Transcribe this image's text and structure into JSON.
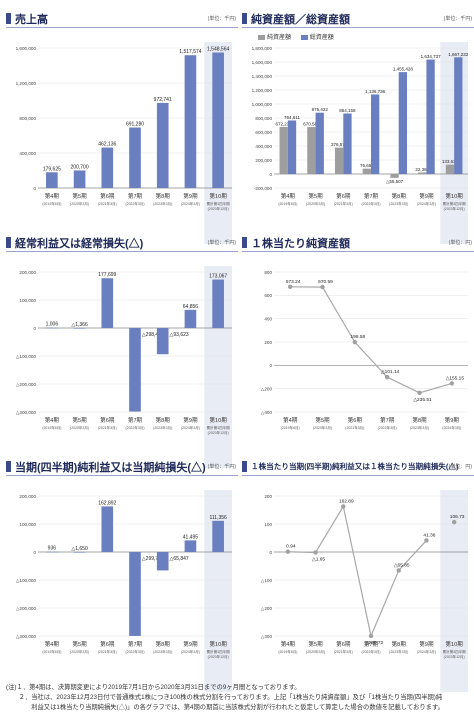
{
  "panels": [
    {
      "title": "売上高",
      "unit": "(単位：千円)",
      "chart_data": {
        "type": "bar",
        "title": "売上高",
        "categories": [
          "第4期",
          "第5期",
          "第6期",
          "第7期",
          "第8期",
          "第9期",
          "第10期"
        ],
        "subcategories": [
          "(2019年6月)",
          "(2020年3月)",
          "(2021年3月)",
          "(2022年3月)",
          "(2023年3月)",
          "(2024年3月)",
          "累計第3四半期(2023年12月)"
        ],
        "series": [
          {
            "values": [
              179625,
              200700,
              462136,
              691280,
              972741,
              1517574,
              1548564
            ]
          }
        ],
        "value_labels": [
          "179,625",
          "200,700",
          "462,136",
          "691,280",
          "972,741",
          "1,517,574",
          "1,548,564"
        ],
        "yticks": [
          0,
          400000,
          800000,
          1200000,
          1600000
        ],
        "ytick_labels": [
          "0",
          "400,000",
          "800,000",
          "1,200,000",
          "1,600,000"
        ],
        "ylim": [
          0,
          1600000
        ],
        "highlight_last": true,
        "bar_color": "#6a7fc0"
      }
    },
    {
      "title": "純資産額／総資産額",
      "unit": "(単位：千円)",
      "legend": [
        {
          "name": "純資産額",
          "color": "#9e9e9e"
        },
        {
          "name": "総資産額",
          "color": "#6a7fc0"
        }
      ],
      "chart_data": {
        "type": "bar",
        "title": "純資産額／総資産額",
        "categories": [
          "第4期",
          "第5期",
          "第6期",
          "第7期",
          "第8期",
          "第9期",
          "第10期"
        ],
        "subcategories": [
          "(2019年6月)",
          "(2020年3月)",
          "(2021年3月)",
          "(2022年3月)",
          "(2023年3月)",
          "(2024年3月)",
          "累計第3四半期(2023年12月)"
        ],
        "series": [
          {
            "name": "純資産額",
            "values": [
              672231,
              670588,
              376577,
              76659,
              -55507,
              22361,
              133633
            ],
            "labels": [
              "672,231",
              "670,588",
              "376,577",
              "76,659",
              "△55,507",
              "22,361",
              "133,633"
            ]
          },
          {
            "name": "総資産額",
            "values": [
              764611,
              875422,
              864158,
              1136736,
              1455428,
              1634737,
              1667232
            ],
            "labels": [
              "764,611",
              "875,422",
              "864,158",
              "1,136,736",
              "1,455,428",
              "1,634,737",
              "1,667,232"
            ]
          }
        ],
        "yticks": [
          -200000,
          0,
          200000,
          400000,
          600000,
          800000,
          1000000,
          1200000,
          1400000,
          1600000,
          1800000
        ],
        "ytick_labels": [
          "-200,000",
          "0",
          "200,000",
          "400,000",
          "600,000",
          "800,000",
          "1,000,000",
          "1,200,000",
          "1,400,000",
          "1,600,000",
          "1,800,000"
        ],
        "ylim": [
          -200000,
          1800000
        ],
        "highlight_last": true
      }
    },
    {
      "title": "経常利益又は経常損失(△)",
      "unit": "(単位：千円)",
      "chart_data": {
        "type": "bar",
        "title": "経常利益又は経常損失(△)",
        "categories": [
          "第4期",
          "第5期",
          "第6期",
          "第7期",
          "第8期",
          "第9期",
          "第10期"
        ],
        "subcategories": [
          "(2019年6月)",
          "(2020年3月)",
          "(2021年3月)",
          "(2022年3月)",
          "(2023年3月)",
          "(2024年3月)",
          "累計第3四半期(2023年12月)"
        ],
        "series": [
          {
            "values": [
              1006,
              -1366,
              177699,
              -298432,
              -93623,
              64856,
              173067
            ]
          }
        ],
        "value_labels": [
          "1,006",
          "△1,366",
          "177,699",
          "△298,432",
          "△93,623",
          "64,856",
          "173,067"
        ],
        "yticks": [
          -300000,
          -200000,
          -100000,
          0,
          100000,
          200000
        ],
        "ytick_labels": [
          "△300,000",
          "△200,000",
          "△100,000",
          "0",
          "100,000",
          "200,000"
        ],
        "ylim": [
          -300000,
          200000
        ],
        "highlight_last": true,
        "bar_color": "#6a7fc0"
      }
    },
    {
      "title": "１株当たり純資産額",
      "unit": "(単位：円)",
      "chart_data": {
        "type": "line",
        "title": "１株当たり純資産額",
        "categories": [
          "第4期",
          "第5期",
          "第6期",
          "第7期",
          "第8期",
          "第9期"
        ],
        "subcategories": [
          "(2019年6月)",
          "(2020年3月)",
          "(2021年3月)",
          "(2022年3月)",
          "(2023年3月)",
          "(2024年3月)"
        ],
        "series": [
          {
            "values": [
              673.24,
              670.59,
              198.58,
              -101.14,
              -235.51,
              -155.15
            ]
          }
        ],
        "value_labels": [
          "673.24",
          "670.59",
          "198.58",
          "△101.14",
          "△235.51",
          "△155.15"
        ],
        "yticks": [
          -400,
          -200,
          0,
          200,
          400,
          600,
          800
        ],
        "ytick_labels": [
          "△400",
          "△200",
          "0",
          "200",
          "400",
          "600",
          "800"
        ],
        "ylim": [
          -400,
          800
        ],
        "line_color": "#a8a8a8"
      }
    },
    {
      "title": "当期(四半期)純利益又は当期純損失(△)",
      "unit": "(単位：千円)",
      "chart_data": {
        "type": "bar",
        "title": "当期(四半期)純利益又は当期純損失(△)",
        "categories": [
          "第4期",
          "第5期",
          "第6期",
          "第7期",
          "第8期",
          "第9期",
          "第10期"
        ],
        "subcategories": [
          "(2019年6月)",
          "(2020年3月)",
          "(2021年3月)",
          "(2022年3月)",
          "(2023年3月)",
          "(2024年3月)",
          "累計第3四半期(2023年12月)"
        ],
        "series": [
          {
            "values": [
              936,
              -1650,
              162892,
              -299718,
              -65847,
              41495,
              111356
            ]
          }
        ],
        "value_labels": [
          "936",
          "△1,650",
          "162,892",
          "△299,718",
          "△65,847",
          "41,495",
          "111,356"
        ],
        "yticks": [
          -300000,
          -200000,
          -100000,
          0,
          100000,
          200000
        ],
        "ytick_labels": [
          "△300,000",
          "△200,000",
          "△100,000",
          "0",
          "100,000",
          "200,000"
        ],
        "ylim": [
          -300000,
          200000
        ],
        "highlight_last": true,
        "bar_color": "#6a7fc0"
      }
    },
    {
      "title": "１株当たり当期(四半期)純利益又は１株当たり当期純損失(△)",
      "unit": "(単位：円)",
      "chart_data": {
        "type": "line",
        "title": "１株当たり当期(四半期)純利益又は１株当たり当期純損失(△)",
        "categories": [
          "第4期",
          "第5期",
          "第6期",
          "第7期",
          "第8期",
          "第9期",
          "第10期"
        ],
        "subcategories": [
          "(2019年6月)",
          "(2020年3月)",
          "(2021年3月)",
          "(2022年3月)",
          "(2023年3月)",
          "(2024年3月)",
          "累計第3四半期(2023年12月)"
        ],
        "series": [
          {
            "values": [
              0.94,
              -1.65,
              162.89,
              -299.72,
              -65.85,
              41.36,
              106.73
            ]
          }
        ],
        "value_labels": [
          "0.94",
          "△1.65",
          "162.89",
          "△299.72",
          "△65.85",
          "41.36",
          "106.73"
        ],
        "yticks": [
          -300,
          -200,
          -100,
          0,
          100,
          200
        ],
        "ytick_labels": [
          "△300",
          "△200",
          "△100",
          "0",
          "100",
          "200"
        ],
        "ylim": [
          -300,
          200
        ],
        "line_color": "#a8a8a8",
        "highlight_last": true,
        "last_point_disconnected": true
      }
    }
  ],
  "notes": {
    "line1": "(注)１．第4期は、決算期変更により2019年7月1日から2020年3月31日までの9ヶ月間となっております。",
    "line2": "　　２．当社は、2023年12月23日付で普通株式1株につき100株の株式分割を行っております。上記「1株当たり純資産額」及び「1株当たり当期(四半期)純",
    "line3": "　　　　利益又は1株当たり当期純損失(△)」の各グラフでは、第4期の期首に当該株式分割が行われたと仮定して算定した場合の数値を記載しております。"
  }
}
